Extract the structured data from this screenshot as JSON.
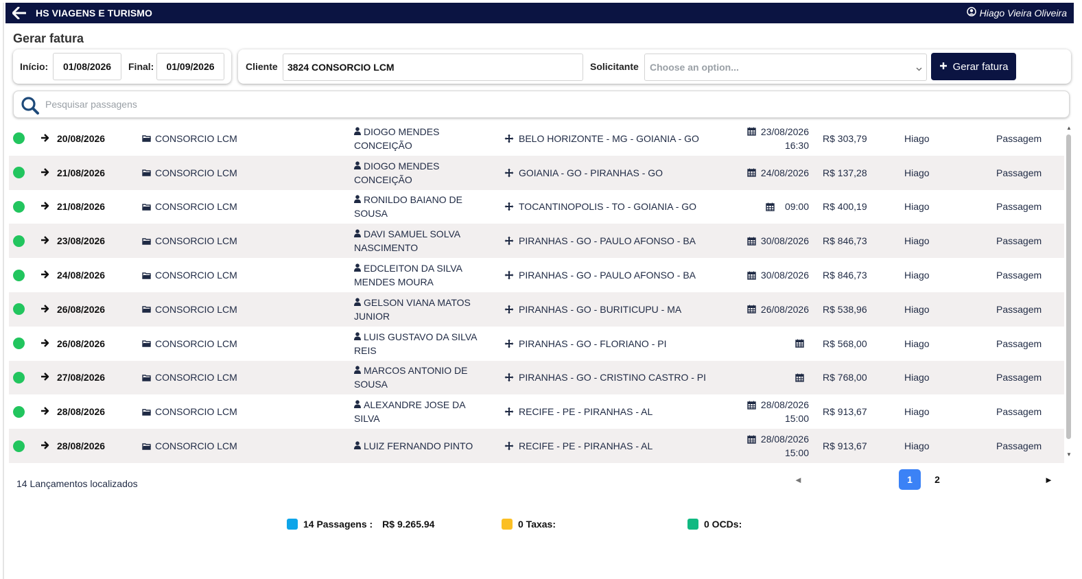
{
  "app": {
    "title": "HS VIAGENS E TURISMO",
    "user": "Hiago Vieira Oliveira"
  },
  "page": {
    "title": "Gerar fatura"
  },
  "filters": {
    "start_label": "Início:",
    "start_value": "01/08/2026",
    "end_label": "Final:",
    "end_value": "01/09/2026",
    "client_label": "Cliente",
    "client_value": "3824 CONSORCIO LCM",
    "requester_label": "Solicitante",
    "requester_placeholder": "Choose an option...",
    "generate_label": "Gerar fatura"
  },
  "search": {
    "placeholder": "Pesquisar passagens"
  },
  "rows": [
    {
      "status": "green",
      "date": "20/08/2026",
      "client": "CONSORCIO LCM",
      "passenger": "DIOGO MENDES CONCEIÇÃO",
      "route": "BELO HORIZONTE - MG - GOIANIA - GO",
      "trip_date": "23/08/2026",
      "trip_time": "16:30",
      "amount": "R$ 303,79",
      "agent": "Hiago",
      "type": "Passagem"
    },
    {
      "status": "green",
      "date": "21/08/2026",
      "client": "CONSORCIO LCM",
      "passenger": "DIOGO MENDES CONCEIÇÃO",
      "route": "GOIANIA - GO - PIRANHAS - GO",
      "trip_date": "24/08/2026",
      "trip_time": "",
      "amount": "R$ 137,28",
      "agent": "Hiago",
      "type": "Passagem"
    },
    {
      "status": "green",
      "date": "21/08/2026",
      "client": "CONSORCIO LCM",
      "passenger": "RONILDO BAIANO DE SOUSA",
      "route": "TOCANTINOPOLIS - TO - GOIANIA - GO",
      "trip_date": "",
      "trip_time": "09:00",
      "amount": "R$ 400,19",
      "agent": "Hiago",
      "type": "Passagem"
    },
    {
      "status": "green",
      "date": "23/08/2026",
      "client": "CONSORCIO LCM",
      "passenger": "DAVI SAMUEL SOLVA NASCIMENTO",
      "route": "PIRANHAS - GO - PAULO AFONSO - BA",
      "trip_date": "30/08/2026",
      "trip_time": "",
      "amount": "R$ 846,73",
      "agent": "Hiago",
      "type": "Passagem"
    },
    {
      "status": "green",
      "date": "24/08/2026",
      "client": "CONSORCIO LCM",
      "passenger": "EDCLEITON DA SILVA MENDES MOURA",
      "route": "PIRANHAS - GO - PAULO AFONSO - BA",
      "trip_date": "30/08/2026",
      "trip_time": "",
      "amount": "R$ 846,73",
      "agent": "Hiago",
      "type": "Passagem"
    },
    {
      "status": "green",
      "date": "26/08/2026",
      "client": "CONSORCIO LCM",
      "passenger": "GELSON VIANA MATOS JUNIOR",
      "route": "PIRANHAS - GO - BURITICUPU - MA",
      "trip_date": "26/08/2026",
      "trip_time": "",
      "amount": "R$ 538,96",
      "agent": "Hiago",
      "type": "Passagem"
    },
    {
      "status": "green",
      "date": "26/08/2026",
      "client": "CONSORCIO LCM",
      "passenger": "LUIS GUSTAVO DA SILVA REIS",
      "route": "PIRANHAS - GO - FLORIANO - PI",
      "trip_date": "",
      "trip_time": "",
      "amount": "R$ 568,00",
      "agent": "Hiago",
      "type": "Passagem"
    },
    {
      "status": "green",
      "date": "27/08/2026",
      "client": "CONSORCIO LCM",
      "passenger": "MARCOS ANTONIO DE SOUSA",
      "route": "PIRANHAS - GO - CRISTINO CASTRO - PI",
      "trip_date": "",
      "trip_time": "",
      "amount": "R$ 768,00",
      "agent": "Hiago",
      "type": "Passagem"
    },
    {
      "status": "green",
      "date": "28/08/2026",
      "client": "CONSORCIO LCM",
      "passenger": "ALEXANDRE JOSE DA SILVA",
      "route": "RECIFE - PE - PIRANHAS - AL",
      "trip_date": "28/08/2026",
      "trip_time": "15:00",
      "amount": "R$ 913,67",
      "agent": "Hiago",
      "type": "Passagem"
    },
    {
      "status": "green",
      "date": "28/08/2026",
      "client": "CONSORCIO LCM",
      "passenger": "LUIZ FERNANDO PINTO",
      "route": "RECIFE - PE - PIRANHAS - AL",
      "trip_date": "28/08/2026",
      "trip_time": "15:00",
      "amount": "R$ 913,67",
      "agent": "Hiago",
      "type": "Passagem"
    }
  ],
  "footer": {
    "count_text": "14 Lançamentos localizados"
  },
  "pagination": {
    "prev": "◄",
    "pages": [
      "1",
      "2"
    ],
    "current": "1",
    "next": "►"
  },
  "summary": {
    "passagens_label": "14 Passagens :",
    "passagens_value": "R$ 9.265.94",
    "taxas_label": "0 Taxas:",
    "ocds_label": "0 OCDs:"
  },
  "colors": {
    "navbar": "#0b1442",
    "status_ok": "#22c55e",
    "passagens": "#0ea5e9",
    "taxas": "#fbbf24",
    "ocds": "#10b981",
    "page_active": "#3b82f6"
  }
}
